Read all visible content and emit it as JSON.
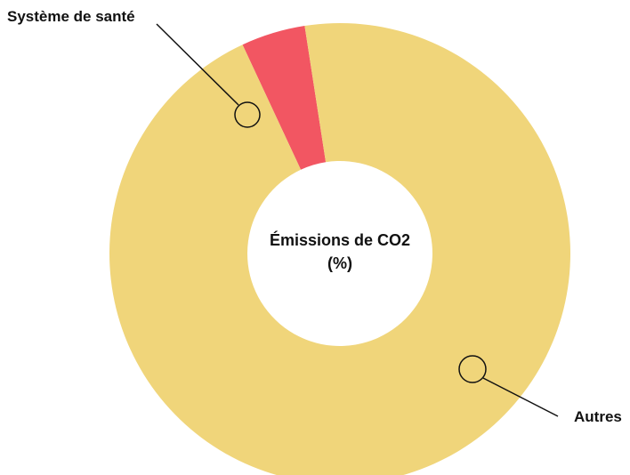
{
  "chart_data": {
    "type": "pie",
    "variant": "donut",
    "center_label_lines": [
      "Émissions de CO2",
      "(%)"
    ],
    "categories": [
      "Système de santé",
      "Autres"
    ],
    "values": [
      4.5,
      95.5
    ],
    "colors": [
      "#F25662",
      "#F0D57A"
    ],
    "legend": "none"
  }
}
